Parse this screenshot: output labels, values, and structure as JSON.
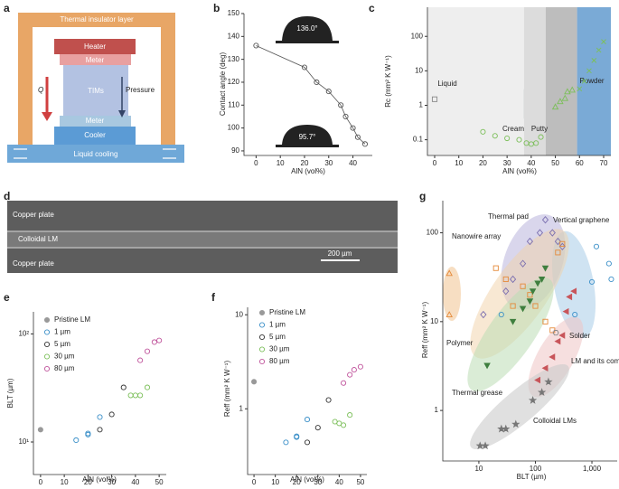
{
  "panel_labels": [
    "a",
    "b",
    "c",
    "d",
    "e",
    "f",
    "g"
  ],
  "diagram_a": {
    "labels": [
      "Thermal insulator layer",
      "Heater",
      "Meter",
      "TIMs",
      "Q",
      "Pressure",
      "Meter",
      "Cooler",
      "Liquid cooling"
    ]
  },
  "image_d": {
    "labels": [
      "Copper plate",
      "Colloidal LM",
      "Copper plate",
      "200 µm"
    ]
  },
  "chart_data": [
    {
      "type": "line",
      "xlabel": "AlN (vol%)",
      "ylabel": "Contact angle (deg)",
      "annotations": [
        "136.0°",
        "95.7°"
      ],
      "xlim": [
        -5,
        48
      ],
      "ylim": [
        88,
        150
      ],
      "xticks": [
        0,
        10,
        20,
        30,
        40
      ],
      "yticks": [
        90,
        100,
        110,
        120,
        130,
        140,
        150
      ],
      "series": [
        {
          "color": "#555555",
          "marker": "o",
          "filled": false,
          "x": [
            0,
            20,
            25,
            30,
            35,
            37,
            40,
            42,
            45
          ],
          "values": [
            136,
            126.5,
            120,
            116,
            110,
            105,
            100,
            96,
            93
          ]
        }
      ]
    },
    {
      "type": "scatter",
      "xlabel": "AlN (vol%)",
      "ylabel": "Rc (mm² K W⁻¹)",
      "log_y": true,
      "xlim": [
        -3,
        73
      ],
      "ylim": [
        0.035,
        700
      ],
      "xticks": [
        0,
        10,
        20,
        30,
        40,
        50,
        60,
        70
      ],
      "yticks": [
        0.1,
        1,
        10,
        100
      ],
      "regions": [
        {
          "name": "Liquid",
          "range": [
            -3,
            37
          ],
          "color": "#eeeeee"
        },
        {
          "name": "Cream",
          "range": [
            37,
            46
          ],
          "color": "#dcdcdc"
        },
        {
          "name": "Putty",
          "range": [
            46,
            59
          ],
          "color": "#bdbdbd"
        },
        {
          "name": "Powder",
          "range": [
            59,
            73
          ],
          "color": "#7aaad6"
        }
      ],
      "series": [
        {
          "color": "#888888",
          "marker": "s",
          "filled": false,
          "x": [
            0
          ],
          "values": [
            1.5
          ]
        },
        {
          "color": "#7cbf5a",
          "marker": "o",
          "filled": false,
          "x": [
            20,
            25,
            30,
            35,
            38,
            40,
            42,
            44
          ],
          "values": [
            0.17,
            0.13,
            0.11,
            0.1,
            0.08,
            0.075,
            0.08,
            0.12
          ]
        },
        {
          "color": "#7cbf5a",
          "marker": "^",
          "filled": false,
          "x": [
            50,
            52,
            54,
            55,
            57
          ],
          "values": [
            0.9,
            1.3,
            1.6,
            2.5,
            2.8
          ]
        },
        {
          "color": "#7cbf5a",
          "marker": "x",
          "filled": false,
          "x": [
            60,
            62,
            64,
            66,
            68,
            70
          ],
          "values": [
            3,
            5,
            10,
            20,
            40,
            70
          ]
        }
      ]
    },
    {
      "type": "scatter",
      "xlabel": "AlN (vol%)",
      "ylabel": "BLT (µm)",
      "log_y": true,
      "legend": "upper left",
      "xlim": [
        -3,
        53
      ],
      "ylim": [
        5,
        160
      ],
      "xticks": [
        0,
        10,
        20,
        30,
        40,
        50
      ],
      "yticks": [
        {
          "value": 10,
          "label": "10¹"
        },
        {
          "value": 100,
          "label": "10²"
        }
      ],
      "series": [
        {
          "name": "Pristine LM",
          "color": "#999999",
          "marker": "o",
          "filled": true,
          "x": [
            0
          ],
          "values": [
            13
          ]
        },
        {
          "name": "1 µm",
          "color": "#3a8fc8",
          "marker": "o",
          "filled": false,
          "x": [
            15,
            20,
            20,
            25
          ],
          "values": [
            10.4,
            11.7,
            12,
            17
          ]
        },
        {
          "name": "5 µm",
          "color": "#333333",
          "marker": "o",
          "filled": false,
          "x": [
            25,
            30,
            35
          ],
          "values": [
            13,
            18,
            32
          ]
        },
        {
          "name": "30 µm",
          "color": "#7cbf5a",
          "marker": "o",
          "filled": false,
          "x": [
            38,
            40,
            42,
            45
          ],
          "values": [
            27,
            27,
            27,
            32
          ]
        },
        {
          "name": "80 µm",
          "color": "#c0549c",
          "marker": "o",
          "filled": false,
          "x": [
            42,
            45,
            48,
            50
          ],
          "values": [
            57,
            69,
            84,
            87
          ]
        }
      ]
    },
    {
      "type": "scatter",
      "xlabel": "AlN (vol%)",
      "ylabel": "Reff (mm² K W⁻¹)",
      "log_y": true,
      "legend": "upper left",
      "xlim": [
        -3,
        53
      ],
      "ylim": [
        0.2,
        12
      ],
      "xticks": [
        0,
        10,
        20,
        30,
        40,
        50
      ],
      "yticks": [
        1,
        10
      ],
      "series": [
        {
          "name": "Pristine LM",
          "color": "#999999",
          "marker": "o",
          "filled": true,
          "x": [
            0
          ],
          "values": [
            1.94
          ]
        },
        {
          "name": "1 µm",
          "color": "#3a8fc8",
          "marker": "o",
          "filled": false,
          "x": [
            15,
            20,
            20,
            25
          ],
          "values": [
            0.44,
            0.5,
            0.51,
            0.77
          ]
        },
        {
          "name": "5 µm",
          "color": "#333333",
          "marker": "o",
          "filled": false,
          "x": [
            25,
            30,
            35
          ],
          "values": [
            0.44,
            0.63,
            1.24
          ]
        },
        {
          "name": "30 µm",
          "color": "#7cbf5a",
          "marker": "o",
          "filled": false,
          "x": [
            38,
            40,
            42,
            45
          ],
          "values": [
            0.73,
            0.7,
            0.67,
            0.86
          ]
        },
        {
          "name": "80 µm",
          "color": "#c0549c",
          "marker": "o",
          "filled": false,
          "x": [
            42,
            45,
            47,
            50
          ],
          "values": [
            1.88,
            2.3,
            2.6,
            2.8
          ]
        }
      ]
    },
    {
      "type": "scatter",
      "xlabel": "BLT (µm)",
      "ylabel": "Reff (mm² K W⁻¹)",
      "log_x": true,
      "log_y": true,
      "xlim": [
        2.3,
        2800
      ],
      "ylim": [
        0.27,
        230
      ],
      "xticks": [
        10,
        100,
        {
          "value": 1000,
          "label": "1,000"
        }
      ],
      "yticks": [
        1,
        10,
        100
      ],
      "series": [
        {
          "name": "Thermal pad",
          "color": "#7b6fb0",
          "marker": "d",
          "filled": false,
          "x": [
            12,
            30,
            40,
            60,
            80,
            120,
            150,
            200,
            250,
            300
          ],
          "values": [
            12,
            22,
            30,
            45,
            80,
            100,
            140,
            100,
            80,
            70
          ]
        },
        {
          "name": "Vertical graphene",
          "color": "#3a8fc8",
          "marker": "o",
          "filled": false,
          "x": [
            25,
            500,
            1000,
            1200,
            2000,
            2200
          ],
          "values": [
            12,
            12,
            28,
            70,
            45,
            30
          ]
        },
        {
          "name": "Nanowire array",
          "color": "#e58a3a",
          "marker": "s",
          "filled": false,
          "x": [
            20,
            30,
            40,
            60,
            80,
            100,
            150,
            200,
            250,
            300
          ],
          "values": [
            40,
            30,
            15,
            25,
            20,
            15,
            10,
            8,
            60,
            75
          ]
        },
        {
          "name": "Solder",
          "color": "#888888",
          "marker": "h",
          "filled": false,
          "x": [
            230
          ],
          "values": [
            7.5
          ]
        },
        {
          "name": "Polymer",
          "color": "#e58a3a",
          "marker": "^",
          "filled": false,
          "x": [
            3,
            3
          ],
          "values": [
            35,
            12
          ]
        },
        {
          "name": "LM and its composites",
          "color": "#c8555a",
          "marker": "<",
          "filled": true,
          "x": [
            110,
            150,
            200,
            250,
            300,
            350,
            400,
            480
          ],
          "values": [
            2.2,
            3,
            4,
            6,
            7,
            13,
            19,
            22
          ]
        },
        {
          "name": "Thermal grease",
          "color": "#3f7f3f",
          "marker": "v",
          "filled": true,
          "x": [
            14,
            40,
            60,
            80,
            90,
            110,
            130,
            150
          ],
          "values": [
            3.2,
            10,
            14,
            17,
            22,
            27,
            30,
            40
          ]
        },
        {
          "name": "Colloidal LMs",
          "color": "#777777",
          "marker": "*",
          "filled": true,
          "x": [
            10.5,
            13,
            25,
            30,
            45,
            90,
            130,
            170
          ],
          "values": [
            0.4,
            0.4,
            0.62,
            0.62,
            0.7,
            1.3,
            1.6,
            2.1
          ]
        }
      ]
    }
  ]
}
